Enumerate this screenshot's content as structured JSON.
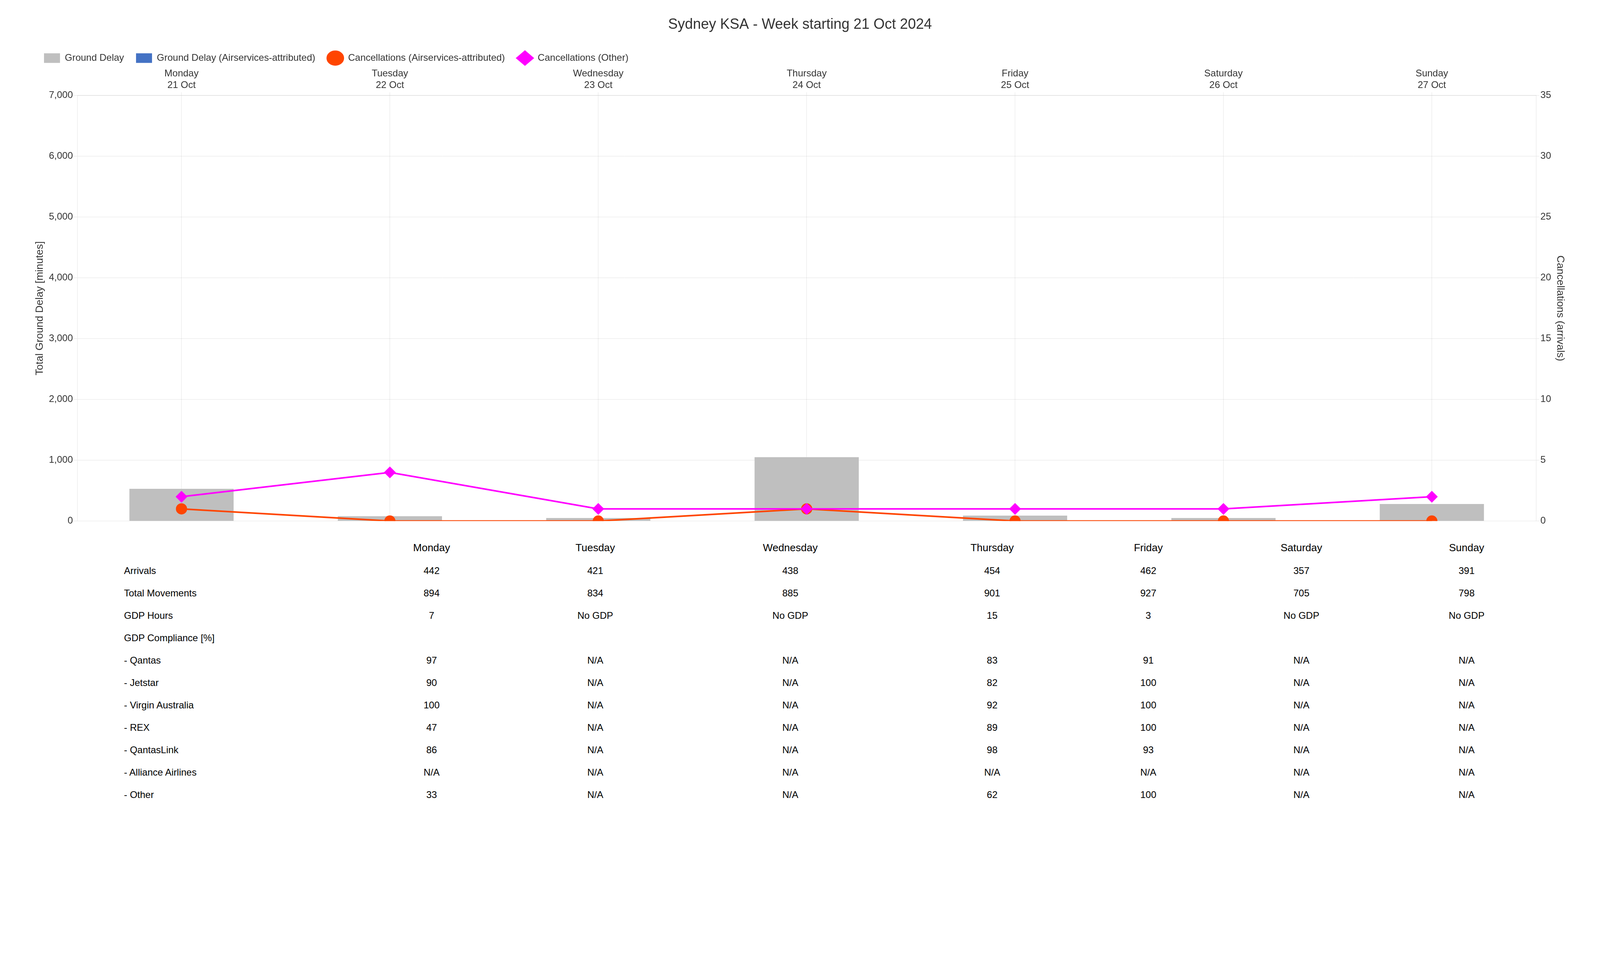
{
  "chart_data": {
    "type": "bar",
    "title": "Sydney KSA - Week starting 21 Oct 2024",
    "categories": [
      "Monday\n21 Oct",
      "Tuesday\n22 Oct",
      "Wednesday\n23 Oct",
      "Thursday\n24 Oct",
      "Friday\n25 Oct",
      "Saturday\n26 Oct",
      "Sunday\n27 Oct"
    ],
    "series": [
      {
        "name": "Ground Delay",
        "type": "bar",
        "color": "#BFBFBF",
        "values": [
          530,
          80,
          50,
          1050,
          90,
          50,
          280
        ]
      },
      {
        "name": "Ground Delay (Airservices-attributed)",
        "type": "bar",
        "color": "#4472C4",
        "values": [
          0,
          0,
          0,
          0,
          0,
          0,
          0
        ]
      },
      {
        "name": "Cancellations (Airservices-attributed)",
        "type": "line",
        "color": "#FF4500",
        "marker": "circle",
        "axis": "y2",
        "values": [
          1,
          0,
          0,
          1,
          0,
          0,
          0
        ]
      },
      {
        "name": "Cancellations (Other)",
        "type": "line",
        "color": "#FF00FF",
        "marker": "diamond",
        "axis": "y2",
        "values": [
          2,
          4,
          1,
          1,
          1,
          1,
          2
        ]
      }
    ],
    "ylabel": "Total Ground Delay [minutes]",
    "y2label": "Cancellations (arrivals)",
    "ylim": [
      0,
      7000
    ],
    "yticks": [
      0,
      1000,
      2000,
      3000,
      4000,
      5000,
      6000,
      7000
    ],
    "y2lim": [
      0,
      35
    ],
    "y2ticks": [
      0,
      5,
      10,
      15,
      20,
      25,
      30,
      35
    ],
    "grid": true,
    "legend": "upper left"
  },
  "table": {
    "headers": [
      "Monday",
      "Tuesday",
      "Wednesday",
      "Thursday",
      "Friday",
      "Saturday",
      "Sunday"
    ],
    "rows": [
      {
        "label": "Arrivals",
        "values": [
          "442",
          "421",
          "438",
          "454",
          "462",
          "357",
          "391"
        ]
      },
      {
        "label": "Total Movements",
        "values": [
          "894",
          "834",
          "885",
          "901",
          "927",
          "705",
          "798"
        ]
      },
      {
        "label": "GDP Hours",
        "values": [
          "7",
          "No GDP",
          "No GDP",
          "15",
          "3",
          "No GDP",
          "No GDP"
        ]
      },
      {
        "label": "GDP Compliance [%]",
        "values": [
          null,
          null,
          null,
          null,
          null,
          null,
          null
        ]
      },
      {
        "label": "- Qantas",
        "values": [
          "97",
          "N/A",
          "N/A",
          "83",
          "91",
          "N/A",
          "N/A"
        ]
      },
      {
        "label": "- Jetstar",
        "values": [
          "90",
          "N/A",
          "N/A",
          "82",
          "100",
          "N/A",
          "N/A"
        ]
      },
      {
        "label": "- Virgin Australia",
        "values": [
          "100",
          "N/A",
          "N/A",
          "92",
          "100",
          "N/A",
          "N/A"
        ]
      },
      {
        "label": "- REX",
        "values": [
          "47",
          "N/A",
          "N/A",
          "89",
          "100",
          "N/A",
          "N/A"
        ]
      },
      {
        "label": "- QantasLink",
        "values": [
          "86",
          "N/A",
          "N/A",
          "98",
          "93",
          "N/A",
          "N/A"
        ]
      },
      {
        "label": "- Alliance Airlines",
        "values": [
          "N/A",
          "N/A",
          "N/A",
          "N/A",
          "N/A",
          "N/A",
          "N/A"
        ]
      },
      {
        "label": "- Other",
        "values": [
          "33",
          "N/A",
          "N/A",
          "62",
          "100",
          "N/A",
          "N/A"
        ]
      }
    ]
  }
}
